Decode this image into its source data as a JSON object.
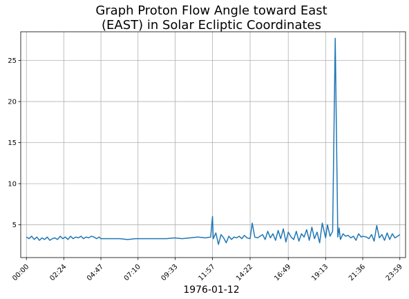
{
  "chart_data": {
    "type": "line",
    "title_line1": "Graph Proton Flow Angle toward East",
    "title_line2": "(EAST) in Solar Ecliptic Coordinates",
    "xlabel": "1976-01-12",
    "ylabel": "",
    "grid": true,
    "color": "#1f77b4",
    "x_ticks": [
      "00:00",
      "02:24",
      "04:47",
      "07:10",
      "09:33",
      "11:57",
      "14:22",
      "16:49",
      "19:13",
      "21:36",
      "23:59"
    ],
    "y_ticks": [
      5,
      10,
      15,
      20,
      25
    ],
    "ylim": [
      1.0,
      28.5
    ],
    "xlim": [
      "00:00",
      "23:59"
    ],
    "series": [
      {
        "x": [
          "00:00",
          "00:10",
          "00:20",
          "00:30",
          "00:40",
          "00:50",
          "01:00",
          "01:10",
          "01:20",
          "01:30",
          "01:40",
          "01:50",
          "02:00",
          "02:10",
          "02:20",
          "02:30",
          "02:40",
          "02:50",
          "03:00",
          "03:10",
          "03:20",
          "03:30",
          "03:40",
          "03:50",
          "04:00",
          "04:10",
          "04:20",
          "04:30",
          "04:40",
          "04:47",
          "05:00",
          "05:30",
          "06:00",
          "06:30",
          "07:00",
          "07:30",
          "08:00",
          "08:30",
          "09:00",
          "09:30",
          "10:00",
          "10:30",
          "11:00",
          "11:30",
          "11:50",
          "11:57",
          "12:00",
          "12:10",
          "12:20",
          "12:30",
          "12:40",
          "12:50",
          "13:00",
          "13:10",
          "13:20",
          "13:30",
          "13:40",
          "13:50",
          "14:00",
          "14:10",
          "14:22",
          "14:30",
          "14:40",
          "14:50",
          "15:00",
          "15:10",
          "15:20",
          "15:30",
          "15:40",
          "15:50",
          "16:00",
          "16:10",
          "16:20",
          "16:30",
          "16:40",
          "16:49",
          "17:00",
          "17:10",
          "17:20",
          "17:30",
          "17:40",
          "17:50",
          "18:00",
          "18:10",
          "18:20",
          "18:30",
          "18:40",
          "18:50",
          "19:00",
          "19:13",
          "19:20",
          "19:30",
          "19:40",
          "19:50",
          "20:00",
          "20:05",
          "20:10",
          "20:20",
          "20:30",
          "20:40",
          "20:50",
          "21:00",
          "21:10",
          "21:20",
          "21:30",
          "21:36",
          "21:50",
          "22:00",
          "22:10",
          "22:20",
          "22:30",
          "22:40",
          "22:50",
          "23:00",
          "23:10",
          "23:20",
          "23:30",
          "23:40",
          "23:50",
          "23:59"
        ],
        "y": [
          3.5,
          3.3,
          3.6,
          3.2,
          3.5,
          3.1,
          3.4,
          3.2,
          3.5,
          3.1,
          3.3,
          3.4,
          3.2,
          3.6,
          3.3,
          3.5,
          3.2,
          3.6,
          3.3,
          3.5,
          3.4,
          3.6,
          3.3,
          3.5,
          3.4,
          3.6,
          3.5,
          3.3,
          3.5,
          3.3,
          3.3,
          3.3,
          3.3,
          3.2,
          3.3,
          3.3,
          3.3,
          3.3,
          3.3,
          3.4,
          3.3,
          3.4,
          3.5,
          3.4,
          3.5,
          6.0,
          3.3,
          4.0,
          2.6,
          3.8,
          3.4,
          2.8,
          3.6,
          3.2,
          3.5,
          3.4,
          3.6,
          3.3,
          3.7,
          3.4,
          3.3,
          5.2,
          3.5,
          3.4,
          3.6,
          3.8,
          3.2,
          4.2,
          3.4,
          3.9,
          3.1,
          4.3,
          3.3,
          4.5,
          2.9,
          4.1,
          3.5,
          3.2,
          4.2,
          3.0,
          3.9,
          3.5,
          4.4,
          3.1,
          4.7,
          3.3,
          4.1,
          2.8,
          5.2,
          3.4,
          5.0,
          3.6,
          4.2,
          27.7,
          3.5,
          4.6,
          3.2,
          3.9,
          3.6,
          3.7,
          3.4,
          3.6,
          3.1,
          3.9,
          3.5,
          3.6,
          3.5,
          3.3,
          3.8,
          3.0,
          4.9,
          3.4,
          3.8,
          3.1,
          4.0,
          3.2,
          3.9,
          3.4,
          3.6,
          3.8
        ]
      }
    ]
  }
}
